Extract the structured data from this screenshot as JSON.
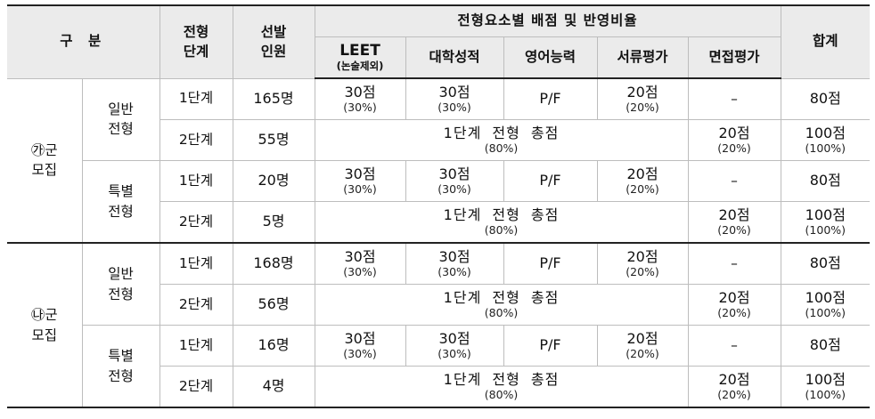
{
  "header": {
    "category": "구  분",
    "stage": [
      "전형",
      "단계"
    ],
    "quota": [
      "선발",
      "인원"
    ],
    "criteria_title": "전형요소별 배점 및 반영비율",
    "leet": "LEET",
    "leet_note": "(논술제외)",
    "gpa": "대학성적",
    "english": "영어능력",
    "docs": "서류평가",
    "interview": "면접평가",
    "total": "합계"
  },
  "groups": [
    {
      "name": [
        "㉮군",
        "모집"
      ],
      "tracks": [
        {
          "name": [
            "일반",
            "전형"
          ],
          "stage1": {
            "stage": "1단계",
            "quota": "165명",
            "leet": "30점",
            "leet_pct": "(30%)",
            "gpa": "30점",
            "gpa_pct": "(30%)",
            "english": "P/F",
            "docs": "20점",
            "docs_pct": "(20%)",
            "interview": "–",
            "total": "80점"
          },
          "stage2": {
            "stage": "2단계",
            "quota": "55명",
            "merged": "1단계 전형 총점",
            "merged_pct": "(80%)",
            "interview": "20점",
            "interview_pct": "(20%)",
            "total": "100점",
            "total_pct": "(100%)"
          }
        },
        {
          "name": [
            "특별",
            "전형"
          ],
          "stage1": {
            "stage": "1단계",
            "quota": "20명",
            "leet": "30점",
            "leet_pct": "(30%)",
            "gpa": "30점",
            "gpa_pct": "(30%)",
            "english": "P/F",
            "docs": "20점",
            "docs_pct": "(20%)",
            "interview": "–",
            "total": "80점"
          },
          "stage2": {
            "stage": "2단계",
            "quota": "5명",
            "merged": "1단계 전형 총점",
            "merged_pct": "(80%)",
            "interview": "20점",
            "interview_pct": "(20%)",
            "total": "100점",
            "total_pct": "(100%)"
          }
        }
      ]
    },
    {
      "name": [
        "㉯군",
        "모집"
      ],
      "tracks": [
        {
          "name": [
            "일반",
            "전형"
          ],
          "stage1": {
            "stage": "1단계",
            "quota": "168명",
            "leet": "30점",
            "leet_pct": "(30%)",
            "gpa": "30점",
            "gpa_pct": "(30%)",
            "english": "P/F",
            "docs": "20점",
            "docs_pct": "(20%)",
            "interview": "–",
            "total": "80점"
          },
          "stage2": {
            "stage": "2단계",
            "quota": "56명",
            "merged": "1단계 전형 총점",
            "merged_pct": "(80%)",
            "interview": "20점",
            "interview_pct": "(20%)",
            "total": "100점",
            "total_pct": "(100%)"
          }
        },
        {
          "name": [
            "특별",
            "전형"
          ],
          "stage1": {
            "stage": "1단계",
            "quota": "16명",
            "leet": "30점",
            "leet_pct": "(30%)",
            "gpa": "30점",
            "gpa_pct": "(30%)",
            "english": "P/F",
            "docs": "20점",
            "docs_pct": "(20%)",
            "interview": "–",
            "total": "80점"
          },
          "stage2": {
            "stage": "2단계",
            "quota": "4명",
            "merged": "1단계 전형 총점",
            "merged_pct": "(80%)",
            "interview": "20점",
            "interview_pct": "(20%)",
            "total": "100점",
            "total_pct": "(100%)"
          }
        }
      ]
    }
  ]
}
